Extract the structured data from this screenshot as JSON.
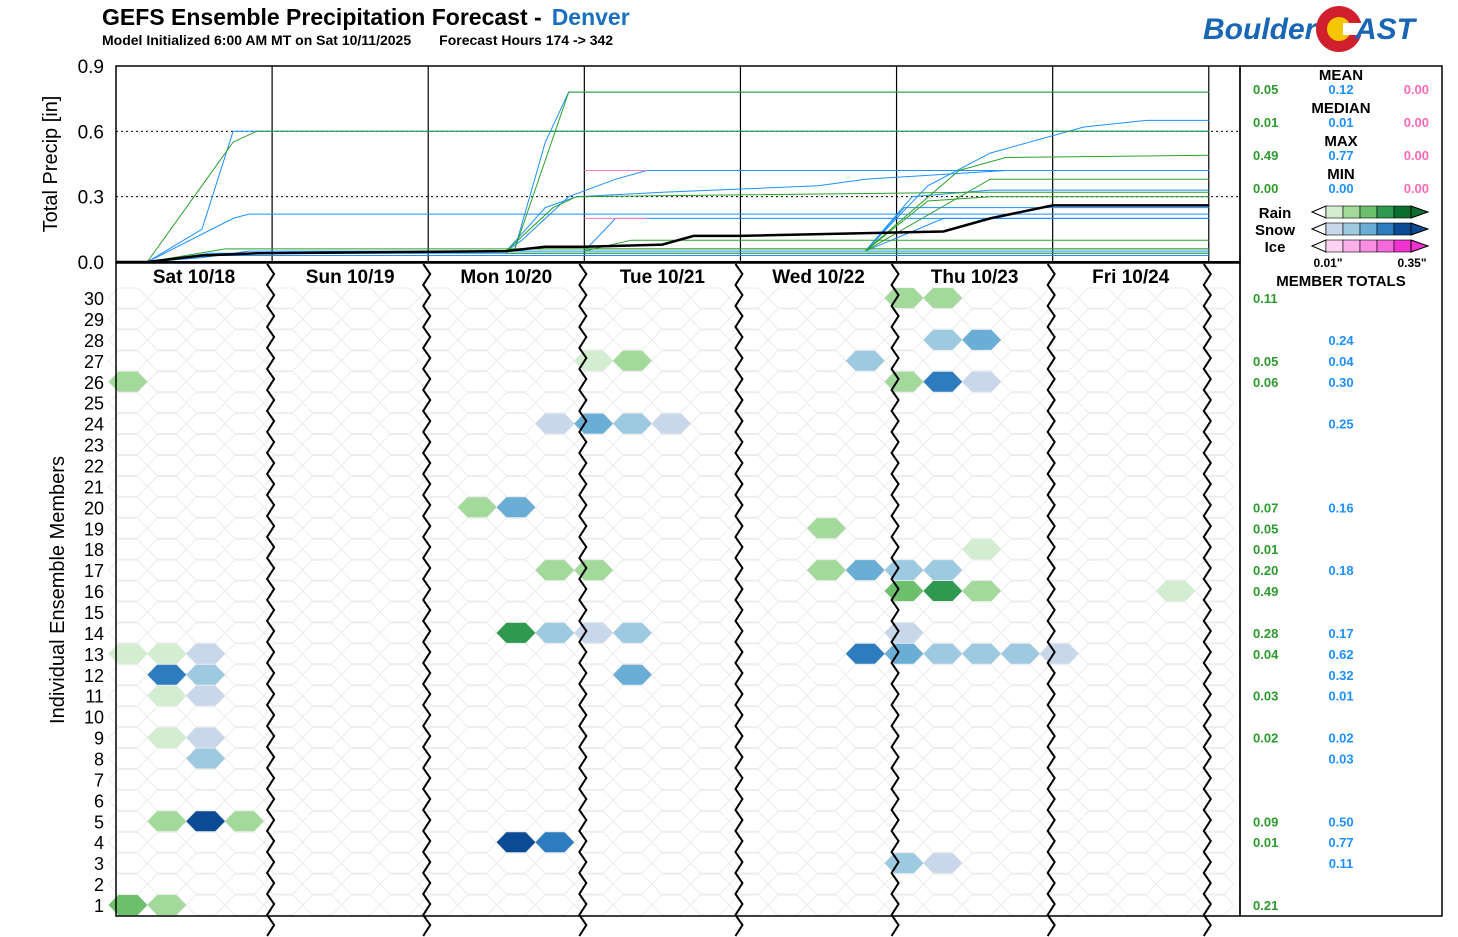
{
  "header": {
    "title": "GEFS Ensemble Precipitation Forecast -",
    "city": "Denver",
    "init": "Model Initialized 6:00 AM MT on Sat 10/11/2025",
    "hours": "Forecast Hours 174 -> 342"
  },
  "logo": {
    "left": "Boulder",
    "right": "AST"
  },
  "colors": {
    "rain": [
      "#d3edd0",
      "#a3d99b",
      "#6cc06c",
      "#2f9a4f",
      "#0a6e2e"
    ],
    "snow": [
      "#c8d8ea",
      "#9ecae1",
      "#6aaed6",
      "#2c7cbf",
      "#0b4a95"
    ],
    "ice": [
      "#fcd2f3",
      "#fbb0ec",
      "#f98ee3",
      "#f56adb",
      "#f032d0"
    ],
    "rain_text": "#2e9a2e",
    "snow_text": "#1e90ff",
    "ice_text": "#ff69b4"
  },
  "chart_data": [
    {
      "type": "line",
      "title": "GEFS Ensemble Precipitation Forecast - Denver",
      "ylabel": "Total Precip [in]",
      "ylim": [
        0,
        0.9
      ],
      "yticks": [
        "0.0",
        "0.3",
        "0.6",
        "0.9"
      ],
      "x_unit": "day index from Sat 10/18 (0 = start, 7 = end)",
      "series": [
        {
          "phase": "snow",
          "points": [
            [
              0.2,
              0
            ],
            [
              0.55,
              0.02
            ],
            [
              0.85,
              0.05
            ],
            [
              2.5,
              0.05
            ],
            [
              3.0,
              0.05
            ],
            [
              4.5,
              0.05
            ],
            [
              7.0,
              0.05
            ]
          ]
        },
        {
          "phase": "snow",
          "points": [
            [
              0.2,
              0
            ],
            [
              0.55,
              0.15
            ],
            [
              0.75,
              0.6
            ],
            [
              7.0,
              0.6
            ]
          ]
        },
        {
          "phase": "snow",
          "points": [
            [
              0.2,
              0
            ],
            [
              0.75,
              0.2
            ],
            [
              0.85,
              0.22
            ],
            [
              2.5,
              0.22
            ],
            [
              2.55,
              0.22
            ],
            [
              7.0,
              0.22
            ]
          ]
        },
        {
          "phase": "snow",
          "points": [
            [
              0.2,
              0
            ],
            [
              0.6,
              0.04
            ],
            [
              7.0,
              0.04
            ]
          ]
        },
        {
          "phase": "snow",
          "points": [
            [
              0.2,
              0
            ],
            [
              0.6,
              0.03
            ],
            [
              7.0,
              0.03
            ]
          ]
        },
        {
          "phase": "snow",
          "points": [
            [
              2.55,
              0.05
            ],
            [
              2.55,
              0.05
            ],
            [
              2.75,
              0.55
            ],
            [
              2.9,
              0.78
            ],
            [
              7.0,
              0.78
            ]
          ]
        },
        {
          "phase": "snow",
          "points": [
            [
              2.5,
              0.05
            ],
            [
              2.6,
              0.1
            ],
            [
              2.9,
              0.3
            ],
            [
              3.2,
              0.38
            ],
            [
              3.4,
              0.42
            ],
            [
              7.0,
              0.42
            ]
          ]
        },
        {
          "phase": "snow",
          "points": [
            [
              2.5,
              0.05
            ],
            [
              2.75,
              0.25
            ],
            [
              2.95,
              0.3
            ],
            [
              3.5,
              0.32
            ],
            [
              4.5,
              0.35
            ],
            [
              4.8,
              0.38
            ],
            [
              5.7,
              0.42
            ],
            [
              7.0,
              0.42
            ]
          ]
        },
        {
          "phase": "snow",
          "points": [
            [
              4.8,
              0.05
            ],
            [
              5.2,
              0.35
            ],
            [
              5.6,
              0.5
            ],
            [
              6.2,
              0.62
            ],
            [
              6.6,
              0.65
            ],
            [
              7.0,
              0.65
            ]
          ]
        },
        {
          "phase": "snow",
          "points": [
            [
              4.8,
              0.05
            ],
            [
              5.1,
              0.3
            ],
            [
              5.6,
              0.33
            ],
            [
              7.0,
              0.33
            ]
          ]
        },
        {
          "phase": "snow",
          "points": [
            [
              4.8,
              0.05
            ],
            [
              5.05,
              0.25
            ],
            [
              7.0,
              0.25
            ]
          ]
        },
        {
          "phase": "snow",
          "points": [
            [
              4.8,
              0.05
            ],
            [
              5.3,
              0.2
            ],
            [
              7.0,
              0.2
            ]
          ]
        },
        {
          "phase": "snow",
          "points": [
            [
              3.0,
              0.05
            ],
            [
              3.2,
              0.2
            ],
            [
              7.0,
              0.2
            ]
          ]
        },
        {
          "phase": "rain",
          "points": [
            [
              0.2,
              0
            ],
            [
              0.75,
              0.55
            ],
            [
              0.9,
              0.6
            ],
            [
              7.0,
              0.6
            ]
          ]
        },
        {
          "phase": "rain",
          "points": [
            [
              0.2,
              0
            ],
            [
              0.7,
              0.06
            ],
            [
              7.0,
              0.06
            ]
          ]
        },
        {
          "phase": "rain",
          "points": [
            [
              2.5,
              0.05
            ],
            [
              2.8,
              0.25
            ],
            [
              2.95,
              0.3
            ],
            [
              5.5,
              0.32
            ],
            [
              7.0,
              0.32
            ]
          ]
        },
        {
          "phase": "rain",
          "points": [
            [
              2.55,
              0.05
            ],
            [
              2.9,
              0.78
            ],
            [
              7.0,
              0.78
            ]
          ]
        },
        {
          "phase": "rain",
          "points": [
            [
              4.8,
              0.05
            ],
            [
              5.4,
              0.42
            ],
            [
              5.7,
              0.48
            ],
            [
              7.0,
              0.49
            ]
          ]
        },
        {
          "phase": "rain",
          "points": [
            [
              4.8,
              0.05
            ],
            [
              5.6,
              0.38
            ],
            [
              7.0,
              0.38
            ]
          ]
        },
        {
          "phase": "rain",
          "points": [
            [
              3.0,
              0.05
            ],
            [
              3.3,
              0.1
            ],
            [
              7.0,
              0.1
            ]
          ]
        },
        {
          "phase": "rain",
          "points": [
            [
              4.8,
              0.05
            ],
            [
              5.2,
              0.28
            ],
            [
              5.6,
              0.3
            ],
            [
              7.0,
              0.3
            ]
          ]
        },
        {
          "phase": "rain",
          "points": [
            [
              2.5,
              0.04
            ],
            [
              7.0,
              0.04
            ]
          ]
        },
        {
          "phase": "rain",
          "points": [
            [
              2.5,
              0.06
            ],
            [
              7.0,
              0.06
            ]
          ]
        },
        {
          "phase": "ice",
          "points": [
            [
              3.0,
              0.2
            ],
            [
              3.4,
              0.2
            ]
          ]
        },
        {
          "phase": "ice",
          "points": [
            [
              3.0,
              0.42
            ],
            [
              3.4,
              0.42
            ]
          ]
        },
        {
          "phase": "mean",
          "points": [
            [
              0,
              0
            ],
            [
              0.2,
              0
            ],
            [
              0.55,
              0.03
            ],
            [
              0.9,
              0.04
            ],
            [
              2.5,
              0.05
            ],
            [
              2.75,
              0.07
            ],
            [
              3.0,
              0.07
            ],
            [
              3.5,
              0.08
            ],
            [
              3.7,
              0.12
            ],
            [
              4.0,
              0.12
            ],
            [
              5.3,
              0.14
            ],
            [
              5.6,
              0.2
            ],
            [
              6.0,
              0.26
            ],
            [
              7.0,
              0.26
            ]
          ]
        }
      ]
    },
    {
      "type": "heatmap",
      "ylabel": "Individual Ensemble Members",
      "categories": [
        "Sat 10/18",
        "Sun 10/19",
        "Mon 10/20",
        "Tue 10/21",
        "Wed 10/22",
        "Thu 10/23",
        "Fri 10/24"
      ],
      "members": [
        30,
        29,
        28,
        27,
        26,
        25,
        24,
        23,
        22,
        21,
        20,
        19,
        18,
        17,
        16,
        15,
        14,
        13,
        12,
        11,
        10,
        9,
        8,
        7,
        6,
        5,
        4,
        3,
        2,
        1
      ],
      "cells": [
        {
          "m": 30,
          "c": 20,
          "p": "rain",
          "l": 1
        },
        {
          "m": 30,
          "c": 21,
          "p": "rain",
          "l": 1
        },
        {
          "m": 28,
          "c": 21,
          "p": "snow",
          "l": 1
        },
        {
          "m": 28,
          "c": 22,
          "p": "snow",
          "l": 2
        },
        {
          "m": 27,
          "c": 12,
          "p": "rain",
          "l": 0
        },
        {
          "m": 27,
          "c": 13,
          "p": "rain",
          "l": 1
        },
        {
          "m": 27,
          "c": 19,
          "p": "snow",
          "l": 1
        },
        {
          "m": 26,
          "c": 0,
          "p": "rain",
          "l": 1
        },
        {
          "m": 26,
          "c": 20,
          "p": "rain",
          "l": 1
        },
        {
          "m": 26,
          "c": 21,
          "p": "snow",
          "l": 3
        },
        {
          "m": 26,
          "c": 22,
          "p": "snow",
          "l": 0
        },
        {
          "m": 24,
          "c": 11,
          "p": "snow",
          "l": 0
        },
        {
          "m": 24,
          "c": 12,
          "p": "snow",
          "l": 2
        },
        {
          "m": 24,
          "c": 13,
          "p": "snow",
          "l": 1
        },
        {
          "m": 24,
          "c": 14,
          "p": "snow",
          "l": 0
        },
        {
          "m": 20,
          "c": 9,
          "p": "rain",
          "l": 1
        },
        {
          "m": 20,
          "c": 10,
          "p": "snow",
          "l": 2
        },
        {
          "m": 19,
          "c": 18,
          "p": "rain",
          "l": 1
        },
        {
          "m": 18,
          "c": 22,
          "p": "rain",
          "l": 0
        },
        {
          "m": 17,
          "c": 11,
          "p": "rain",
          "l": 1
        },
        {
          "m": 17,
          "c": 12,
          "p": "rain",
          "l": 1
        },
        {
          "m": 17,
          "c": 18,
          "p": "rain",
          "l": 1
        },
        {
          "m": 17,
          "c": 19,
          "p": "snow",
          "l": 2
        },
        {
          "m": 17,
          "c": 20,
          "p": "snow",
          "l": 1
        },
        {
          "m": 17,
          "c": 21,
          "p": "snow",
          "l": 1
        },
        {
          "m": 16,
          "c": 20,
          "p": "rain",
          "l": 2
        },
        {
          "m": 16,
          "c": 21,
          "p": "rain",
          "l": 3
        },
        {
          "m": 16,
          "c": 22,
          "p": "rain",
          "l": 1
        },
        {
          "m": 16,
          "c": 27,
          "p": "rain",
          "l": 0
        },
        {
          "m": 14,
          "c": 10,
          "p": "rain",
          "l": 3
        },
        {
          "m": 14,
          "c": 11,
          "p": "snow",
          "l": 1
        },
        {
          "m": 14,
          "c": 12,
          "p": "snow",
          "l": 0
        },
        {
          "m": 14,
          "c": 13,
          "p": "snow",
          "l": 1
        },
        {
          "m": 14,
          "c": 20,
          "p": "snow",
          "l": 0
        },
        {
          "m": 13,
          "c": 0,
          "p": "rain",
          "l": 0
        },
        {
          "m": 13,
          "c": 1,
          "p": "rain",
          "l": 0
        },
        {
          "m": 13,
          "c": 2,
          "p": "snow",
          "l": 0
        },
        {
          "m": 13,
          "c": 19,
          "p": "snow",
          "l": 3
        },
        {
          "m": 13,
          "c": 20,
          "p": "snow",
          "l": 2
        },
        {
          "m": 13,
          "c": 21,
          "p": "snow",
          "l": 1
        },
        {
          "m": 13,
          "c": 22,
          "p": "snow",
          "l": 1
        },
        {
          "m": 13,
          "c": 23,
          "p": "snow",
          "l": 1
        },
        {
          "m": 13,
          "c": 24,
          "p": "snow",
          "l": 0
        },
        {
          "m": 12,
          "c": 1,
          "p": "snow",
          "l": 3
        },
        {
          "m": 12,
          "c": 2,
          "p": "snow",
          "l": 1
        },
        {
          "m": 12,
          "c": 13,
          "p": "snow",
          "l": 2
        },
        {
          "m": 11,
          "c": 1,
          "p": "rain",
          "l": 0
        },
        {
          "m": 11,
          "c": 2,
          "p": "snow",
          "l": 0
        },
        {
          "m": 9,
          "c": 1,
          "p": "rain",
          "l": 0
        },
        {
          "m": 9,
          "c": 2,
          "p": "snow",
          "l": 0
        },
        {
          "m": 8,
          "c": 2,
          "p": "snow",
          "l": 1
        },
        {
          "m": 5,
          "c": 1,
          "p": "rain",
          "l": 1
        },
        {
          "m": 5,
          "c": 2,
          "p": "snow",
          "l": 4
        },
        {
          "m": 5,
          "c": 3,
          "p": "rain",
          "l": 1
        },
        {
          "m": 4,
          "c": 10,
          "p": "snow",
          "l": 4
        },
        {
          "m": 4,
          "c": 11,
          "p": "snow",
          "l": 3
        },
        {
          "m": 3,
          "c": 20,
          "p": "snow",
          "l": 1
        },
        {
          "m": 3,
          "c": 21,
          "p": "snow",
          "l": 0
        },
        {
          "m": 1,
          "c": 0,
          "p": "rain",
          "l": 2
        },
        {
          "m": 1,
          "c": 1,
          "p": "rain",
          "l": 1
        }
      ]
    }
  ],
  "summary": {
    "rows": [
      {
        "label": "MEAN",
        "rain": "0.05",
        "snow": "0.12",
        "ice": "0.00",
        "rain_level": 0.05
      },
      {
        "label": "MEDIAN",
        "rain": "0.01",
        "snow": "0.01",
        "ice": "0.00",
        "rain_level": 0.6
      },
      {
        "label": "MAX",
        "rain": "0.49",
        "snow": "0.77",
        "ice": "0.00",
        "rain_level": 0.3
      },
      {
        "label": "MIN",
        "rain": "0.00",
        "snow": "0.00",
        "ice": "0.00",
        "rain_level": 0.3
      }
    ],
    "legend_labels": [
      "Rain",
      "Snow",
      "Ice"
    ],
    "legend_min": "0.01\"",
    "legend_max": "0.35\"",
    "member_totals_title": "MEMBER TOTALS",
    "member_totals": [
      {
        "m": 30,
        "rain": "0.11",
        "snow": ""
      },
      {
        "m": 28,
        "rain": "",
        "snow": "0.24"
      },
      {
        "m": 27,
        "rain": "0.05",
        "snow": "0.04"
      },
      {
        "m": 26,
        "rain": "0.06",
        "snow": "0.30"
      },
      {
        "m": 24,
        "rain": "",
        "snow": "0.25"
      },
      {
        "m": 20,
        "rain": "0.07",
        "snow": "0.16"
      },
      {
        "m": 19,
        "rain": "0.05",
        "snow": ""
      },
      {
        "m": 18,
        "rain": "0.01",
        "snow": ""
      },
      {
        "m": 17,
        "rain": "0.20",
        "snow": "0.18"
      },
      {
        "m": 16,
        "rain": "0.49",
        "snow": ""
      },
      {
        "m": 14,
        "rain": "0.28",
        "snow": "0.17"
      },
      {
        "m": 13,
        "rain": "0.04",
        "snow": "0.62"
      },
      {
        "m": 12,
        "rain": "",
        "snow": "0.32"
      },
      {
        "m": 11,
        "rain": "0.03",
        "snow": "0.01"
      },
      {
        "m": 9,
        "rain": "0.02",
        "snow": "0.02"
      },
      {
        "m": 8,
        "rain": "",
        "snow": "0.03"
      },
      {
        "m": 5,
        "rain": "0.09",
        "snow": "0.50"
      },
      {
        "m": 4,
        "rain": "0.01",
        "snow": "0.77"
      },
      {
        "m": 3,
        "rain": "",
        "snow": "0.11"
      },
      {
        "m": 1,
        "rain": "0.21",
        "snow": ""
      }
    ]
  }
}
